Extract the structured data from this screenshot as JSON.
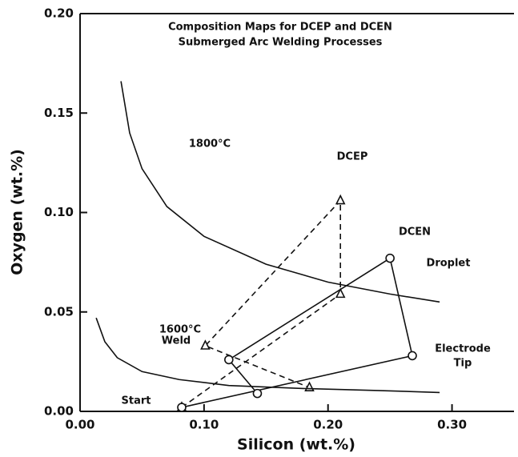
{
  "chart_data": {
    "type": "line",
    "title": [
      "Composition Maps for DCEP and DCEN",
      "Submerged Arc Welding Processes"
    ],
    "x_label": "Silicon (wt.%)",
    "y_label": "Oxygen (wt.%)",
    "xlim": [
      0,
      0.35
    ],
    "ylim": [
      0,
      0.2
    ],
    "xticks": [
      {
        "value": 0,
        "label": "0.00"
      },
      {
        "value": 0.1,
        "label": "0.10"
      },
      {
        "value": 0.2,
        "label": "0.20"
      },
      {
        "value": 0.3,
        "label": "0.30"
      }
    ],
    "yticks": [
      {
        "value": 0,
        "label": "0.00"
      },
      {
        "value": 0.05,
        "label": "0.05"
      },
      {
        "value": 0.1,
        "label": "0.10"
      },
      {
        "value": 0.15,
        "label": "0.15"
      },
      {
        "value": 0.2,
        "label": "0.20"
      }
    ],
    "series": [
      {
        "name": "DCEP",
        "color": "#111111",
        "dash": true,
        "marker": "triangle",
        "x": [
          0.082,
          0.21,
          0.21,
          0.101,
          0.185
        ],
        "values": [
          0.002,
          0.059,
          0.106,
          0.033,
          0.012
        ]
      },
      {
        "name": "DCEN",
        "color": "#111111",
        "dash": false,
        "marker": "circle",
        "x": [
          0.082,
          0.268,
          0.25,
          0.12,
          0.143
        ],
        "values": [
          0.002,
          0.028,
          0.077,
          0.026,
          0.009
        ]
      },
      {
        "name": "1800°C",
        "color": "#111111",
        "dash": false,
        "marker": "none",
        "x": [
          0.033,
          0.04,
          0.05,
          0.07,
          0.1,
          0.15,
          0.2,
          0.25,
          0.29
        ],
        "values": [
          0.166,
          0.14,
          0.122,
          0.103,
          0.088,
          0.074,
          0.065,
          0.059,
          0.055
        ]
      },
      {
        "name": "1600°C",
        "color": "#111111",
        "dash": false,
        "marker": "none",
        "x": [
          0.013,
          0.02,
          0.03,
          0.05,
          0.08,
          0.12,
          0.18,
          0.24,
          0.29
        ],
        "values": [
          0.047,
          0.035,
          0.027,
          0.02,
          0.016,
          0.013,
          0.0115,
          0.0105,
          0.0095
        ]
      }
    ],
    "annotations": [
      "Droplet",
      "Electrode",
      "Tip",
      "Weld",
      "Start"
    ]
  }
}
